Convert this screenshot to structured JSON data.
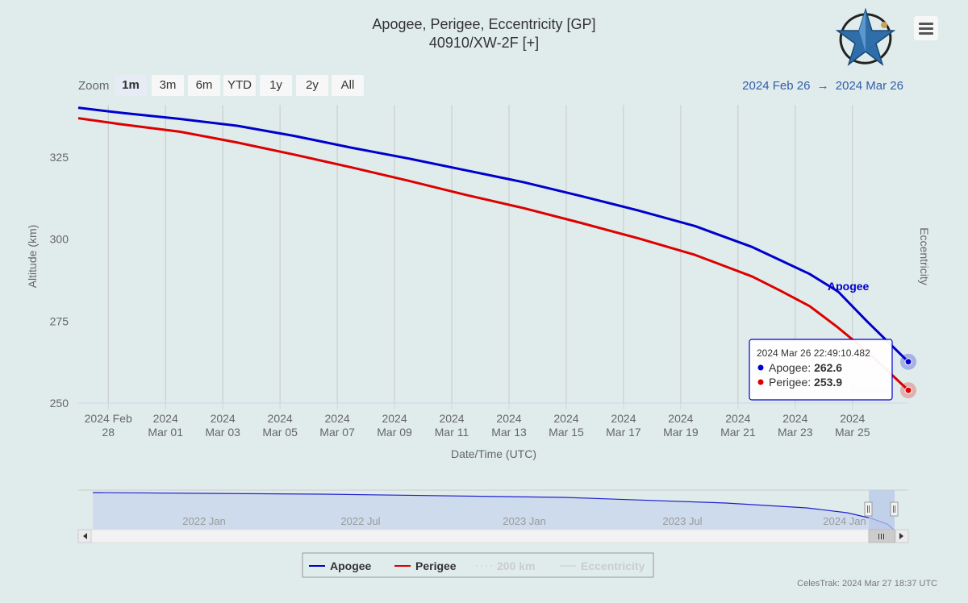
{
  "header": {
    "title": "Apogee, Perigee, Eccentricity [GP]",
    "subtitle": "40910/XW-2F [+]"
  },
  "zoom": {
    "label": "Zoom",
    "buttons": [
      "1m",
      "3m",
      "6m",
      "YTD",
      "1y",
      "2y",
      "All"
    ],
    "selected": "1m"
  },
  "range": {
    "from": "2024 Feb 26",
    "arrow": "→",
    "to": "2024 Mar 26"
  },
  "tooltip": {
    "timestamp": "2024 Mar 26 22:49:10.482",
    "apogee_label": "Apogee:",
    "apogee_value": "262.6",
    "perigee_label": "Perigee:",
    "perigee_value": "253.9"
  },
  "navigator": {
    "labels": [
      "2022 Jan",
      "2022 Jul",
      "2023 Jan",
      "2023 Jul",
      "2024 Jan"
    ]
  },
  "legend": {
    "items": [
      {
        "name": "Apogee",
        "color": "#0000cc",
        "active": true
      },
      {
        "name": "Perigee",
        "color": "#dd0000",
        "active": true
      },
      {
        "name": "200 km",
        "color": "#cccccc",
        "active": false
      },
      {
        "name": "Eccentricity",
        "color": "#cccccc",
        "active": false
      }
    ]
  },
  "footer": "CelesTrak: 2024 Mar 27 18:37 UTC",
  "colors": {
    "apogee": "#0000cc",
    "perigee": "#dd0000",
    "background": "#e0eceb",
    "accent": "#335cad"
  },
  "chart_data": {
    "type": "line",
    "xlabel": "Date/Time (UTC)",
    "ylabel": "Altitude (km)",
    "y2label": "Eccentricity",
    "ylim": [
      250,
      341
    ],
    "xlim": [
      "2024-02-26T22:49",
      "2024-03-26T22:49"
    ],
    "yticks": [
      250,
      275,
      300,
      325
    ],
    "xticks": [
      {
        "date": "2024-02-28",
        "label": [
          "2024 Feb",
          "28"
        ]
      },
      {
        "date": "2024-03-01",
        "label": [
          "2024",
          "Mar 01"
        ]
      },
      {
        "date": "2024-03-03",
        "label": [
          "2024",
          "Mar 03"
        ]
      },
      {
        "date": "2024-03-05",
        "label": [
          "2024",
          "Mar 05"
        ]
      },
      {
        "date": "2024-03-07",
        "label": [
          "2024",
          "Mar 07"
        ]
      },
      {
        "date": "2024-03-09",
        "label": [
          "2024",
          "Mar 09"
        ]
      },
      {
        "date": "2024-03-11",
        "label": [
          "2024",
          "Mar 11"
        ]
      },
      {
        "date": "2024-03-13",
        "label": [
          "2024",
          "Mar 13"
        ]
      },
      {
        "date": "2024-03-15",
        "label": [
          "2024",
          "Mar 15"
        ]
      },
      {
        "date": "2024-03-17",
        "label": [
          "2024",
          "Mar 17"
        ]
      },
      {
        "date": "2024-03-19",
        "label": [
          "2024",
          "Mar 19"
        ]
      },
      {
        "date": "2024-03-21",
        "label": [
          "2024",
          "Mar 21"
        ]
      },
      {
        "date": "2024-03-23",
        "label": [
          "2024",
          "Mar 23"
        ]
      },
      {
        "date": "2024-03-25",
        "label": [
          "2024",
          "Mar 25"
        ]
      }
    ],
    "grid": true,
    "series": [
      {
        "name": "Apogee",
        "color": "#0000cc",
        "points": [
          [
            "2024-02-26T22:49",
            340.1
          ],
          [
            "2024-02-28T12:00",
            338.5
          ],
          [
            "2024-03-01T12:00",
            336.7
          ],
          [
            "2024-03-03T12:00",
            334.6
          ],
          [
            "2024-03-05T12:00",
            331.5
          ],
          [
            "2024-03-07T12:00",
            327.9
          ],
          [
            "2024-03-09T12:00",
            324.6
          ],
          [
            "2024-03-11T12:00",
            321.0
          ],
          [
            "2024-03-13T12:00",
            317.4
          ],
          [
            "2024-03-15T12:00",
            313.2
          ],
          [
            "2024-03-17T12:00",
            308.8
          ],
          [
            "2024-03-19T12:00",
            304.0
          ],
          [
            "2024-03-21T12:00",
            297.6
          ],
          [
            "2024-03-22T12:00",
            293.5
          ],
          [
            "2024-03-23T12:00",
            289.4
          ],
          [
            "2024-03-24T12:00",
            284.0
          ],
          [
            "2024-03-25T12:00",
            275.0
          ],
          [
            "2024-03-26T22:49",
            262.6
          ]
        ]
      },
      {
        "name": "Perigee",
        "color": "#dd0000",
        "points": [
          [
            "2024-02-26T22:49",
            336.9
          ],
          [
            "2024-02-28T12:00",
            335.0
          ],
          [
            "2024-03-01T12:00",
            332.8
          ],
          [
            "2024-03-03T12:00",
            329.5
          ],
          [
            "2024-03-05T12:00",
            325.8
          ],
          [
            "2024-03-07T12:00",
            321.9
          ],
          [
            "2024-03-09T12:00",
            317.8
          ],
          [
            "2024-03-11T12:00",
            313.5
          ],
          [
            "2024-03-13T12:00",
            309.5
          ],
          [
            "2024-03-15T12:00",
            305.0
          ],
          [
            "2024-03-17T12:00",
            300.3
          ],
          [
            "2024-03-19T12:00",
            295.2
          ],
          [
            "2024-03-21T12:00",
            288.6
          ],
          [
            "2024-03-22T12:00",
            284.2
          ],
          [
            "2024-03-23T12:00",
            279.6
          ],
          [
            "2024-03-24T12:00",
            273.0
          ],
          [
            "2024-03-25T12:00",
            265.8
          ],
          [
            "2024-03-26T22:49",
            253.9
          ]
        ]
      }
    ]
  }
}
